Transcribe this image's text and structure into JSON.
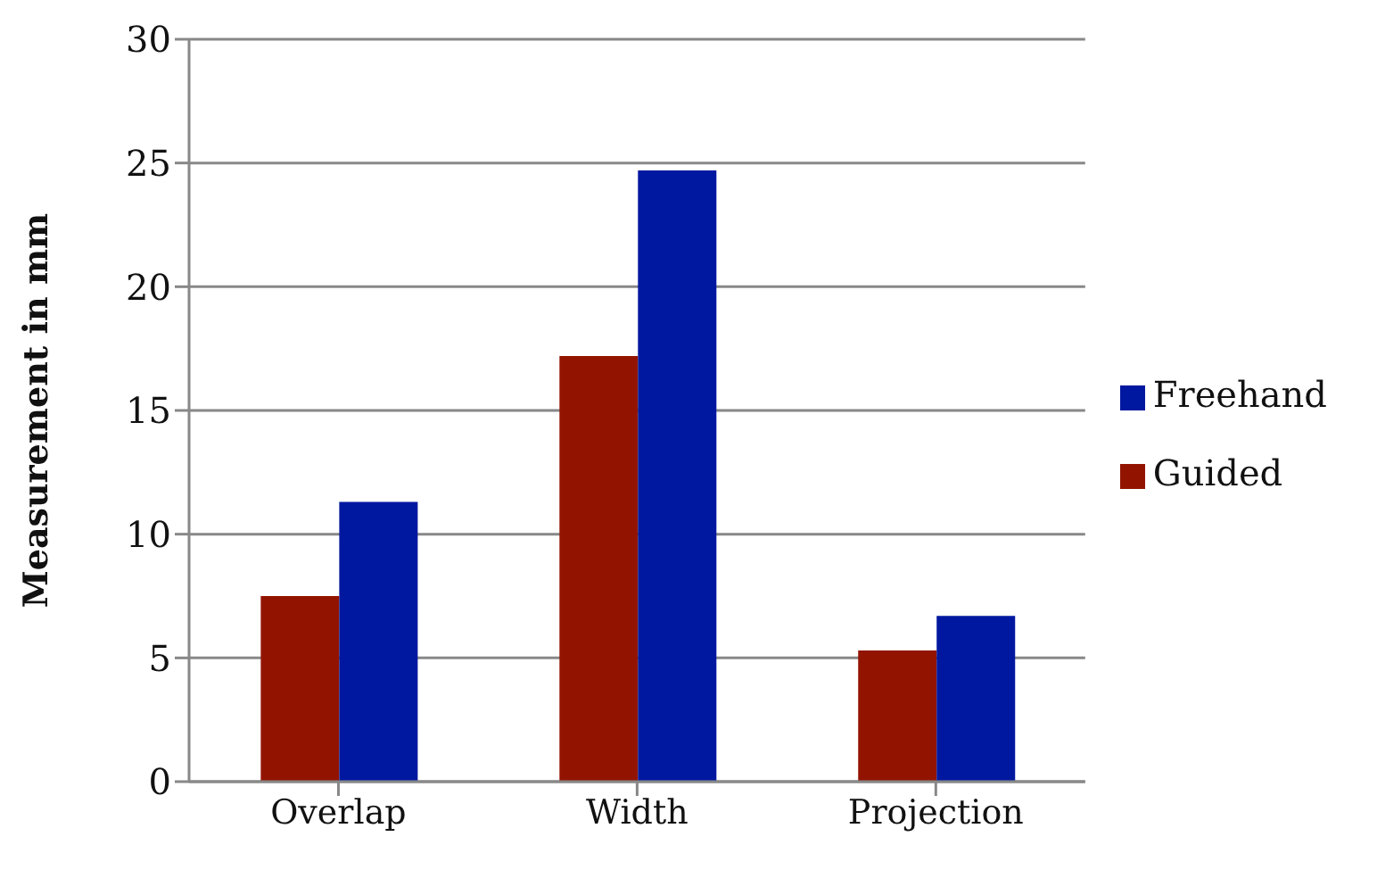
{
  "chart_data": {
    "type": "bar",
    "ylabel": "Measurement in mm",
    "categories": [
      "Overlap",
      "Width",
      "Projection"
    ],
    "series": [
      {
        "name": "Guided",
        "color": "#921400",
        "values": [
          7.5,
          17.2,
          5.3
        ]
      },
      {
        "name": "Freehand",
        "color": "#0018a0",
        "values": [
          11.3,
          24.7,
          6.7
        ]
      }
    ],
    "ylim": [
      0,
      30
    ],
    "yticks": [
      0,
      5,
      10,
      15,
      20,
      25,
      30
    ],
    "grid": "y",
    "legend": "right"
  }
}
